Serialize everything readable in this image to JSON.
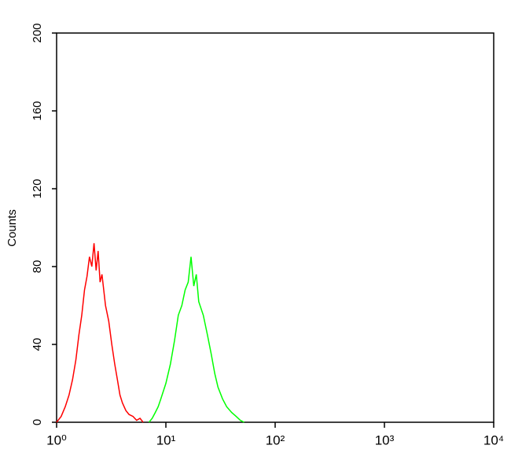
{
  "chart_data": {
    "type": "line",
    "y_label": "Counts",
    "xscale": "log",
    "xlim": [
      1,
      10000
    ],
    "xticks": [
      {
        "value": 1,
        "label": "10⁰"
      },
      {
        "value": 10,
        "label": "10¹"
      },
      {
        "value": 100,
        "label": "10²"
      },
      {
        "value": 1000,
        "label": "10³"
      },
      {
        "value": 10000,
        "label": "10⁴"
      }
    ],
    "ylim": [
      0,
      200
    ],
    "yticks": [
      0,
      40,
      80,
      120,
      160,
      200
    ],
    "series": [
      {
        "color": "#ff0000",
        "x": [
          1.0,
          1.1,
          1.2,
          1.3,
          1.4,
          1.5,
          1.6,
          1.7,
          1.8,
          1.9,
          2.0,
          2.1,
          2.2,
          2.3,
          2.4,
          2.5,
          2.6,
          2.8,
          3.0,
          3.2,
          3.4,
          3.6,
          3.8,
          4.0,
          4.3,
          4.6,
          5.0,
          5.4,
          5.8,
          6.2
        ],
        "values": [
          0,
          3,
          8,
          14,
          22,
          32,
          45,
          55,
          68,
          75,
          85,
          80,
          92,
          78,
          88,
          72,
          76,
          60,
          52,
          40,
          30,
          22,
          14,
          10,
          6,
          4,
          3,
          1,
          2,
          0
        ]
      },
      {
        "color": "#00ff00",
        "x": [
          7,
          7.5,
          8,
          8.5,
          9,
          10,
          11,
          12,
          13,
          14,
          15,
          16,
          17,
          18,
          19,
          20,
          22,
          24,
          26,
          28,
          30,
          33,
          36,
          40,
          44,
          48,
          52
        ],
        "values": [
          0,
          2,
          5,
          8,
          12,
          20,
          30,
          42,
          55,
          60,
          68,
          72,
          85,
          70,
          76,
          62,
          55,
          45,
          35,
          25,
          18,
          12,
          8,
          5,
          3,
          1,
          0
        ]
      }
    ]
  }
}
